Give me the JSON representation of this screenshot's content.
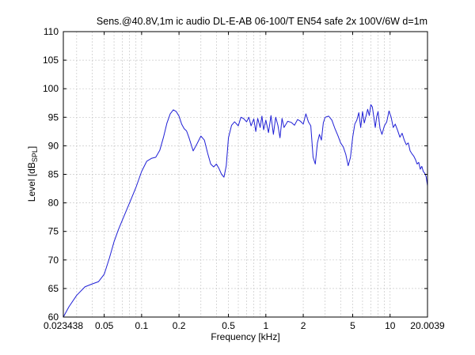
{
  "chart_data": {
    "type": "line",
    "title": "Sens.@40.8V,1m ic audio DL-E-AB 06-100/T EN54 safe 2x 100V/6W d=1m",
    "xlabel": "Frequency [kHz]",
    "ylabel": "Level [dB",
    "ylabel_sub": "SPL",
    "ylabel_end": "]",
    "x_scale": "log",
    "xlim": [
      0.023438,
      20.0039
    ],
    "ylim": [
      60,
      110
    ],
    "grid": true,
    "x_ticks": [
      {
        "value": 0.023438,
        "label": "0.023438"
      },
      {
        "value": 0.05,
        "label": "0.05"
      },
      {
        "value": 0.1,
        "label": "0.1"
      },
      {
        "value": 0.2,
        "label": "0.2"
      },
      {
        "value": 0.5,
        "label": "0.5"
      },
      {
        "value": 1,
        "label": "1"
      },
      {
        "value": 2,
        "label": "2"
      },
      {
        "value": 5,
        "label": "5"
      },
      {
        "value": 10,
        "label": "10"
      },
      {
        "value": 20.0039,
        "label": "20.0039"
      }
    ],
    "y_ticks": [
      {
        "value": 60,
        "label": "60"
      },
      {
        "value": 65,
        "label": "65"
      },
      {
        "value": 70,
        "label": "70"
      },
      {
        "value": 75,
        "label": "75"
      },
      {
        "value": 80,
        "label": "80"
      },
      {
        "value": 85,
        "label": "85"
      },
      {
        "value": 90,
        "label": "90"
      },
      {
        "value": 95,
        "label": "95"
      },
      {
        "value": 100,
        "label": "100"
      },
      {
        "value": 105,
        "label": "105"
      },
      {
        "value": 110,
        "label": "110"
      }
    ],
    "series": [
      {
        "color": "#1f1fd6",
        "x": [
          0.023438,
          0.026,
          0.03,
          0.035,
          0.04,
          0.045,
          0.05,
          0.055,
          0.06,
          0.065,
          0.07,
          0.08,
          0.09,
          0.1,
          0.11,
          0.12,
          0.13,
          0.14,
          0.15,
          0.16,
          0.17,
          0.18,
          0.19,
          0.2,
          0.21,
          0.22,
          0.23,
          0.24,
          0.26,
          0.28,
          0.3,
          0.32,
          0.34,
          0.36,
          0.38,
          0.4,
          0.42,
          0.44,
          0.46,
          0.48,
          0.5,
          0.53,
          0.56,
          0.6,
          0.63,
          0.66,
          0.7,
          0.73,
          0.76,
          0.8,
          0.83,
          0.86,
          0.9,
          0.93,
          0.96,
          1.0,
          1.05,
          1.1,
          1.15,
          1.2,
          1.25,
          1.3,
          1.35,
          1.4,
          1.5,
          1.6,
          1.7,
          1.8,
          1.9,
          2.0,
          2.1,
          2.2,
          2.3,
          2.4,
          2.5,
          2.6,
          2.7,
          2.8,
          2.9,
          3.0,
          3.2,
          3.4,
          3.6,
          3.8,
          4.0,
          4.2,
          4.4,
          4.6,
          4.8,
          5.0,
          5.2,
          5.4,
          5.6,
          5.8,
          6.0,
          6.2,
          6.4,
          6.6,
          6.8,
          7.0,
          7.2,
          7.4,
          7.6,
          7.8,
          8.0,
          8.3,
          8.6,
          9.0,
          9.4,
          9.8,
          10.2,
          10.6,
          11.0,
          11.5,
          12.0,
          12.5,
          13.0,
          13.5,
          14.0,
          14.5,
          15.0,
          15.5,
          16.0,
          16.5,
          17.0,
          17.5,
          18.0,
          18.5,
          19.0,
          19.5,
          20.0039
        ],
        "y": [
          60.0,
          61.8,
          63.8,
          65.3,
          65.8,
          66.2,
          67.5,
          70.3,
          73.2,
          75.3,
          77.0,
          80.0,
          82.7,
          85.5,
          87.3,
          87.8,
          88.0,
          89.2,
          91.5,
          94.0,
          95.6,
          96.3,
          96.0,
          95.2,
          93.8,
          93.0,
          92.6,
          91.5,
          89.1,
          90.4,
          91.7,
          91.0,
          88.7,
          86.8,
          86.3,
          86.8,
          86.0,
          85.0,
          84.5,
          86.5,
          91.4,
          93.6,
          94.2,
          93.5,
          95.0,
          94.8,
          94.2,
          95.0,
          93.5,
          94.7,
          92.5,
          94.8,
          93.2,
          95.2,
          92.8,
          94.5,
          92.3,
          95.3,
          92.0,
          95.0,
          93.6,
          91.4,
          94.8,
          93.2,
          94.3,
          94.1,
          93.6,
          94.6,
          94.3,
          93.8,
          95.6,
          94.2,
          93.5,
          88.0,
          86.8,
          90.5,
          92.0,
          91.0,
          94.0,
          95.0,
          95.2,
          94.5,
          93.0,
          91.8,
          90.5,
          89.8,
          88.5,
          86.5,
          88.0,
          91.5,
          93.8,
          94.5,
          95.8,
          93.2,
          96.0,
          94.0,
          95.2,
          96.4,
          95.3,
          97.2,
          96.8,
          95.0,
          93.2,
          95.1,
          96.0,
          93.0,
          92.0,
          93.5,
          94.2,
          96.1,
          95.0,
          93.2,
          93.8,
          92.7,
          91.5,
          92.2,
          91.0,
          90.2,
          90.5,
          89.1,
          88.6,
          88.2,
          87.6,
          86.8,
          87.1,
          85.9,
          86.4,
          85.5,
          85.2,
          84.6,
          83.0
        ]
      }
    ]
  }
}
